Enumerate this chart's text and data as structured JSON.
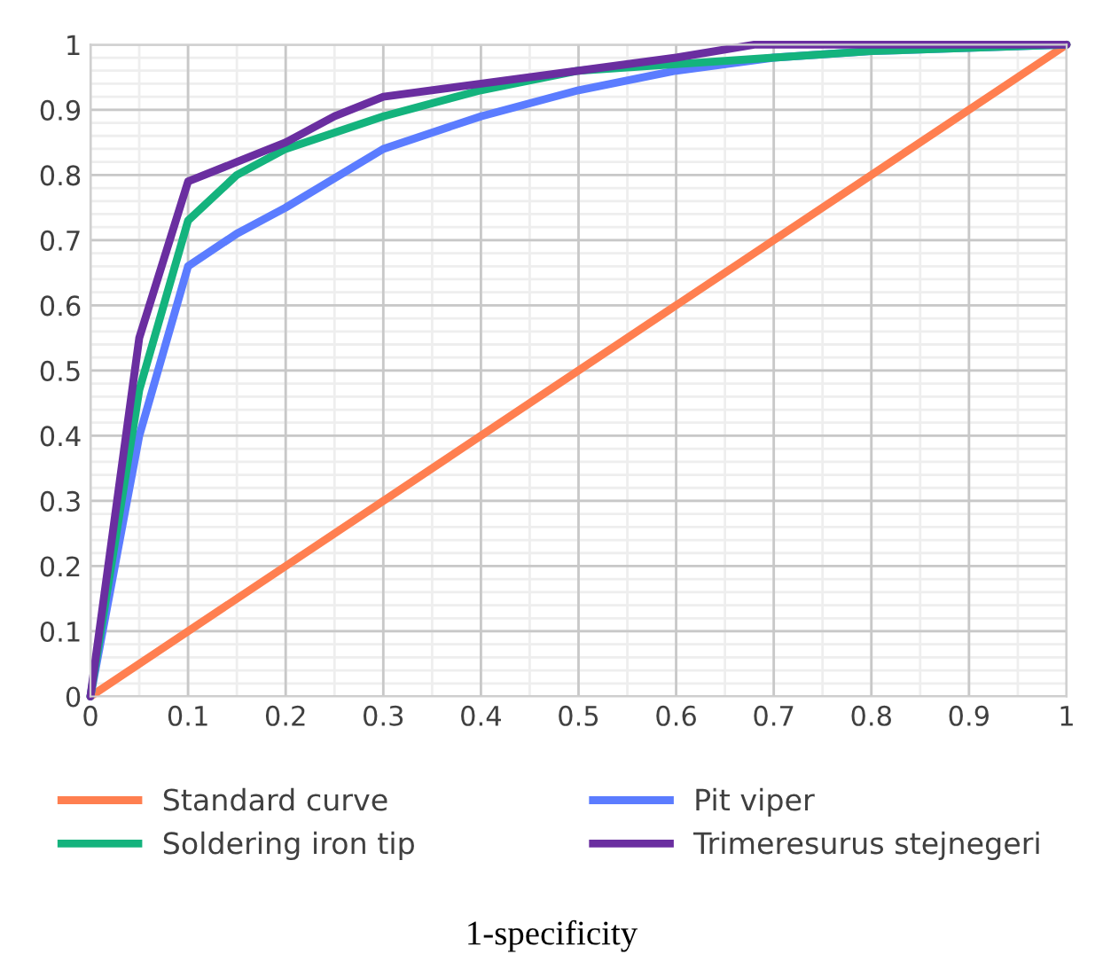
{
  "chart_data": {
    "type": "line",
    "annotations": [
      "1-specificity"
    ],
    "xlim": [
      0,
      1
    ],
    "ylim": [
      0,
      1
    ],
    "xticks": [
      0,
      0.1,
      0.2,
      0.3,
      0.4,
      0.5,
      0.6,
      0.7,
      0.8,
      0.9,
      1
    ],
    "yticks": [
      0,
      0.1,
      0.2,
      0.3,
      0.4,
      0.5,
      0.6,
      0.7,
      0.8,
      0.9,
      1
    ],
    "grid": true,
    "legend": "bottom",
    "marker": "none",
    "line_style": "solid",
    "series": [
      {
        "name": "Standard curve",
        "color": "#ff7f50",
        "x": [
          0,
          1
        ],
        "values": [
          0,
          1
        ]
      },
      {
        "name": "Pit viper",
        "color": "#5b7cff",
        "x": [
          0,
          0.05,
          0.1,
          0.15,
          0.2,
          0.3,
          0.4,
          0.5,
          0.6,
          0.7,
          0.8,
          1
        ],
        "values": [
          0,
          0.4,
          0.66,
          0.71,
          0.75,
          0.84,
          0.89,
          0.93,
          0.96,
          0.98,
          0.99,
          1
        ]
      },
      {
        "name": "Soldering iron tip",
        "color": "#14b37d",
        "x": [
          0,
          0.05,
          0.1,
          0.15,
          0.2,
          0.3,
          0.4,
          0.5,
          0.6,
          0.7,
          0.8,
          1
        ],
        "values": [
          0,
          0.47,
          0.73,
          0.8,
          0.84,
          0.89,
          0.93,
          0.96,
          0.97,
          0.98,
          0.99,
          1
        ]
      },
      {
        "name": "Trimeresurus stejnegeri",
        "color": "#6a2ea0",
        "x": [
          0,
          0.05,
          0.1,
          0.15,
          0.2,
          0.25,
          0.3,
          0.4,
          0.5,
          0.6,
          0.68,
          1
        ],
        "values": [
          0,
          0.55,
          0.79,
          0.82,
          0.85,
          0.89,
          0.92,
          0.94,
          0.96,
          0.98,
          1,
          1
        ]
      }
    ]
  }
}
